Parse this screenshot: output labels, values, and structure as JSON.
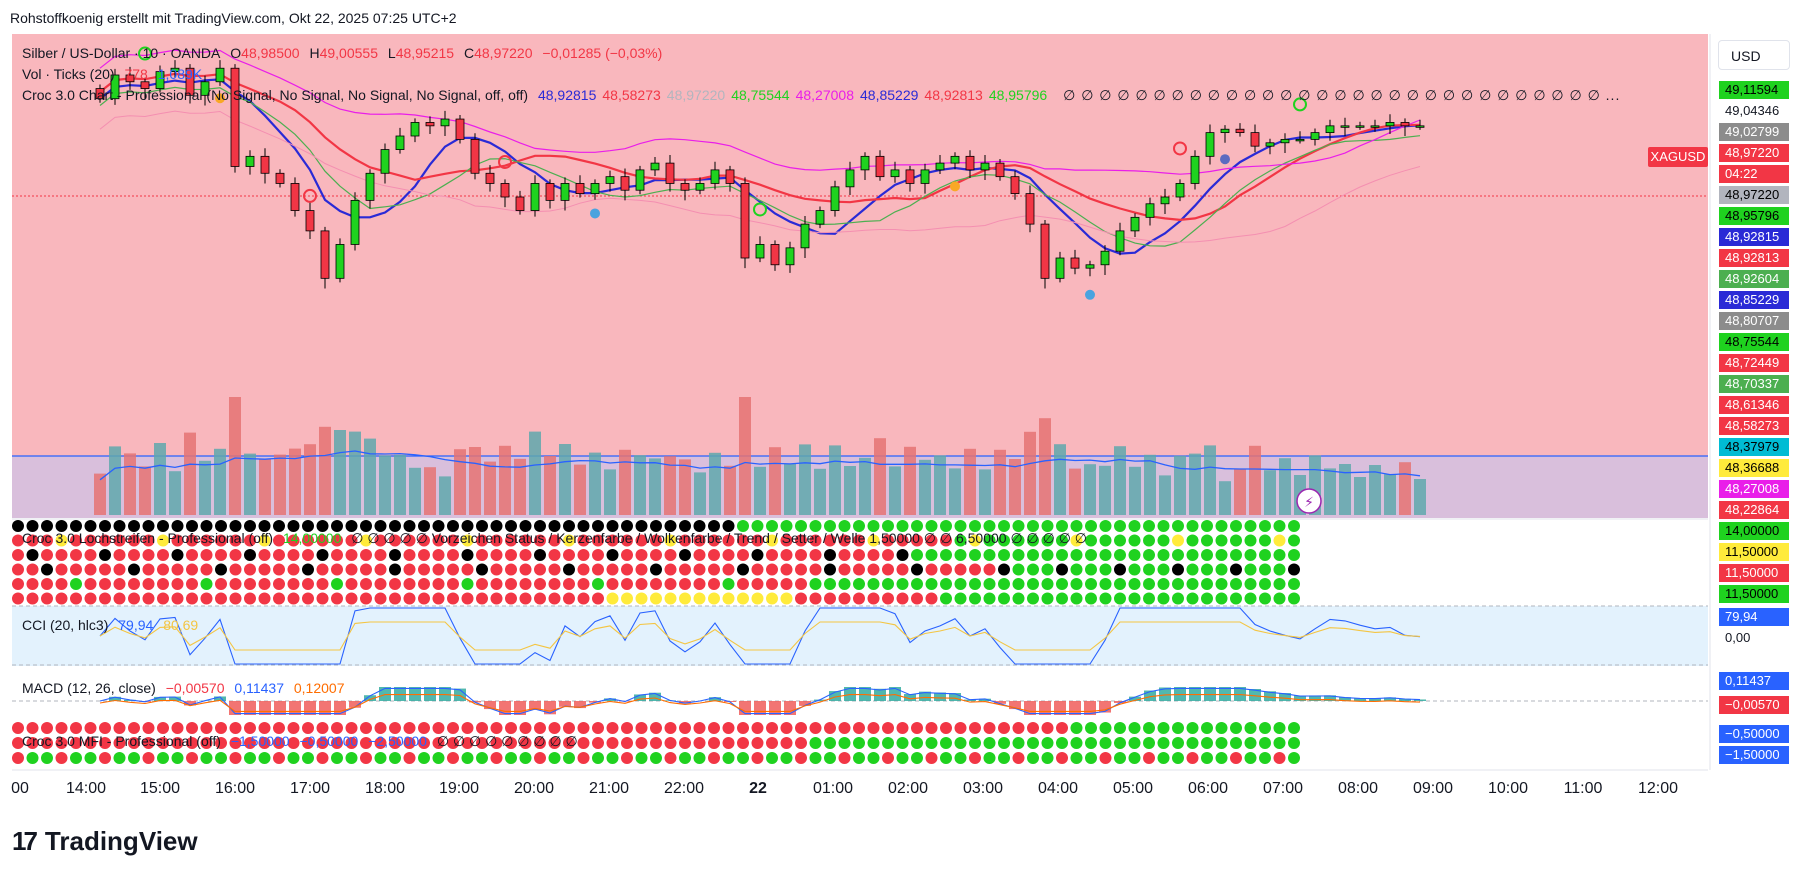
{
  "header": {
    "text": "Rohstoffkoenig erstellt mit TradingView.com, Okt 22, 2025 07:25 UTC+2"
  },
  "currency_button": "USD",
  "symbol_tag": {
    "symbol": "XAGUSD",
    "price": "48,97220",
    "countdown": "04:22"
  },
  "legend": {
    "main": {
      "name": "Silber / US-Dollar · 10 · OANDA",
      "o_label": "O",
      "o": "48,98500",
      "h_label": "H",
      "h": "49,00555",
      "l_label": "L",
      "l": "48,95215",
      "c_label": "C",
      "c": "48,97220",
      "change": "−0,01285 (−0,03%)"
    },
    "vol": {
      "name": "Vol · Ticks (20)",
      "v1": "778",
      "v2": "1,089K"
    },
    "croc": {
      "name": "Croc 3.0 Chart - Professional (No Signal, No Signal, No Signal, No Signal, off, off)",
      "values": [
        {
          "v": "48,92815",
          "c": "#2a2ad6"
        },
        {
          "v": "48,58273",
          "c": "#f23645"
        },
        {
          "v": "48,97220",
          "c": "#b2b5be"
        },
        {
          "v": "48,75544",
          "c": "#1fd21f"
        },
        {
          "v": "48,27008",
          "c": "#e91ee9"
        },
        {
          "v": "48,85229",
          "c": "#2a2ad6"
        },
        {
          "v": "48,92813",
          "c": "#f23645"
        },
        {
          "v": "48,95796",
          "c": "#1fd21f"
        }
      ],
      "tail": "∅ ∅ ∅ ∅ ∅ ∅ ∅ ∅ ∅ ∅ ∅ ∅ ∅ ∅ ∅ ∅ ∅ ∅ ∅ ∅ ∅ ∅ ∅ ∅ ∅ ∅ ∅ ∅ ∅ ∅ ..."
    },
    "loch": {
      "name": "Croc 3.0 Lochstreifen - Professional (off)",
      "v1": "14,00000",
      "mid": "∅ ∅ ∅ ∅ ∅ Vorzeichen Status / Kerzenfarbe / Wolkenfarbe / Trend / Setter / Welle 1,50000 ∅ ∅ 6,50000 ∅ ∅ ∅ ∅ ∅"
    },
    "cci": {
      "name": "CCI (20, hlc3)",
      "v1": "79,94",
      "v2": "80,69"
    },
    "macd": {
      "name": "MACD (12, 26, close)",
      "v1": "−0,00570",
      "v2": "0,11437",
      "v3": "0,12007"
    },
    "mfi": {
      "name": "Croc 3.0 MFI - Professional (off)",
      "v1": "−1,50000",
      "v2": "−0,50000",
      "v3": "−2,50000",
      "tail": "∅ ∅ ∅ ∅ ∅ ∅ ∅ ∅ ∅"
    }
  },
  "price_axis": [
    {
      "v": "49,11594",
      "bg": "#1fd21f",
      "fg": "#000000"
    },
    {
      "v": "49,04346",
      "bg": "#ffffff",
      "fg": "#131722"
    },
    {
      "v": "49,02799",
      "bg": "#8c8c8c",
      "fg": "#ffffff"
    },
    {
      "v": "48,97220",
      "bg": "#f23645",
      "fg": "#ffffff"
    },
    {
      "v": "04:22",
      "bg": "#f23645",
      "fg": "#ffffff"
    },
    {
      "v": "48,97220",
      "bg": "#b2b5be",
      "fg": "#000000"
    },
    {
      "v": "48,95796",
      "bg": "#1fd21f",
      "fg": "#000000"
    },
    {
      "v": "48,92815",
      "bg": "#2a2ad6",
      "fg": "#ffffff"
    },
    {
      "v": "48,92813",
      "bg": "#f23645",
      "fg": "#ffffff"
    },
    {
      "v": "48,92604",
      "bg": "#4caf50",
      "fg": "#ffffff"
    },
    {
      "v": "48,85229",
      "bg": "#2a2ad6",
      "fg": "#ffffff"
    },
    {
      "v": "48,80707",
      "bg": "#8c8c8c",
      "fg": "#ffffff"
    },
    {
      "v": "48,75544",
      "bg": "#1fd21f",
      "fg": "#000000"
    },
    {
      "v": "48,72449",
      "bg": "#f23645",
      "fg": "#ffffff"
    },
    {
      "v": "48,70337",
      "bg": "#4caf50",
      "fg": "#ffffff"
    },
    {
      "v": "48,61346",
      "bg": "#f23645",
      "fg": "#ffffff"
    },
    {
      "v": "48,58273",
      "bg": "#f23645",
      "fg": "#ffffff"
    },
    {
      "v": "48,37979",
      "bg": "#00bcd4",
      "fg": "#000000"
    },
    {
      "v": "48,36688",
      "bg": "#ffeb3b",
      "fg": "#000000"
    },
    {
      "v": "48,27008",
      "bg": "#e91ee9",
      "fg": "#ffffff"
    },
    {
      "v": "48,22864",
      "bg": "#f23645",
      "fg": "#ffffff"
    }
  ],
  "loch_axis": [
    {
      "v": "14,00000",
      "bg": "#1fd21f",
      "fg": "#000000"
    },
    {
      "v": "11,50000",
      "bg": "#ffeb3b",
      "fg": "#000000"
    },
    {
      "v": "11,50000",
      "bg": "#f23645",
      "fg": "#ffffff"
    },
    {
      "v": "11,50000",
      "bg": "#1fd21f",
      "fg": "#000000"
    }
  ],
  "cci_axis": [
    {
      "v": "79,94",
      "bg": "#2962ff",
      "fg": "#ffffff"
    },
    {
      "v": "0,00",
      "bg": "#ffffff",
      "fg": "#131722"
    }
  ],
  "macd_axis": [
    {
      "v": "0,11437",
      "bg": "#2962ff",
      "fg": "#ffffff"
    },
    {
      "v": "−0,00570",
      "bg": "#f23645",
      "fg": "#ffffff"
    }
  ],
  "mfi_axis": [
    {
      "v": "−0,50000",
      "bg": "#2962ff",
      "fg": "#ffffff"
    },
    {
      "v": "−1,50000",
      "bg": "#2962ff",
      "fg": "#ffffff"
    }
  ],
  "time_axis": [
    "00",
    "14:00",
    "15:00",
    "16:00",
    "17:00",
    "18:00",
    "19:00",
    "20:00",
    "21:00",
    "22:00",
    "22",
    "01:00",
    "02:00",
    "03:00",
    "04:00",
    "05:00",
    "06:00",
    "07:00",
    "08:00",
    "09:00",
    "10:00",
    "11:00",
    "12:00"
  ],
  "brand": "TradingView",
  "chart_data": {
    "type": "candlestick",
    "symbol": "XAGUSD",
    "title": "Silber / US-Dollar · 10 · OANDA",
    "interval": "10",
    "ohlc_last": {
      "o": 48.985,
      "h": 49.00555,
      "l": 48.95215,
      "c": 48.9722
    },
    "y_range": [
      48.22,
      49.12
    ],
    "closes": [
      49.05,
      49.12,
      49.1,
      49.08,
      49.13,
      49.14,
      49.06,
      49.1,
      49.14,
      48.85,
      48.88,
      48.83,
      48.8,
      48.72,
      48.66,
      48.52,
      48.62,
      48.75,
      48.83,
      48.9,
      48.94,
      48.98,
      48.97,
      48.99,
      48.93,
      48.83,
      48.8,
      48.76,
      48.72,
      48.8,
      48.75,
      48.8,
      48.77,
      48.8,
      48.82,
      48.78,
      48.84,
      48.86,
      48.8,
      48.78,
      48.8,
      48.84,
      48.8,
      48.58,
      48.62,
      48.56,
      48.61,
      48.68,
      48.72,
      48.79,
      48.84,
      48.88,
      48.82,
      48.84,
      48.8,
      48.84,
      48.86,
      48.88,
      48.84,
      48.86,
      48.82,
      48.77,
      48.68,
      48.52,
      48.58,
      48.55,
      48.56,
      48.6,
      48.66,
      48.7,
      48.74,
      48.76,
      48.8,
      48.88,
      48.95,
      48.96,
      48.95,
      48.91,
      48.92,
      48.93,
      48.93,
      48.95,
      48.97,
      48.97,
      48.97,
      48.97,
      48.98,
      48.97,
      48.97
    ],
    "volume_ticks_last": 778,
    "volume_ma_last": 1089,
    "cci": {
      "last": 79.94,
      "signal": 80.69
    },
    "macd": {
      "hist": -0.0057,
      "macd": 0.11437,
      "signal": 0.12007
    },
    "x_ticks": [
      "14:00",
      "15:00",
      "16:00",
      "17:00",
      "18:00",
      "19:00",
      "20:00",
      "21:00",
      "22:00",
      "22",
      "01:00",
      "02:00",
      "03:00",
      "04:00",
      "05:00",
      "06:00",
      "07:00",
      "08:00",
      "09:00",
      "10:00",
      "11:00",
      "12:00"
    ]
  }
}
